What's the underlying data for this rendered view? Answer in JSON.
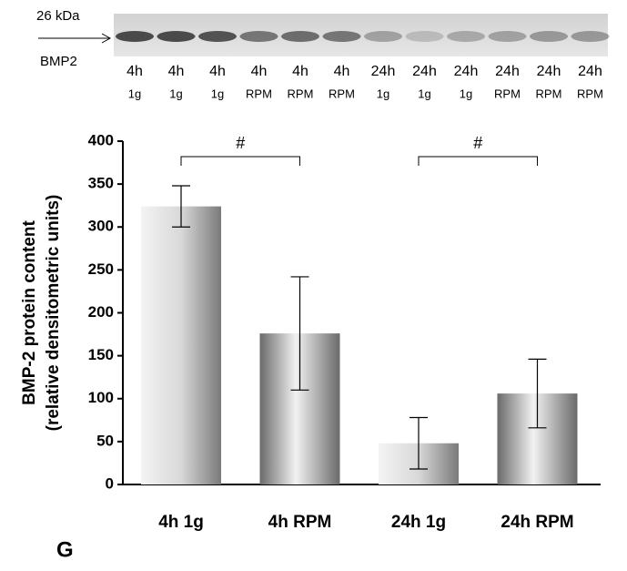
{
  "blot": {
    "marker": "26 kDa",
    "protein": "BMP2",
    "lanes": [
      {
        "time": "4h",
        "condition": "1g"
      },
      {
        "time": "4h",
        "condition": "1g"
      },
      {
        "time": "4h",
        "condition": "1g"
      },
      {
        "time": "4h",
        "condition": "RPM"
      },
      {
        "time": "4h",
        "condition": "RPM"
      },
      {
        "time": "4h",
        "condition": "RPM"
      },
      {
        "time": "24h",
        "condition": "1g"
      },
      {
        "time": "24h",
        "condition": "1g"
      },
      {
        "time": "24h",
        "condition": "1g"
      },
      {
        "time": "24h",
        "condition": "RPM"
      },
      {
        "time": "24h",
        "condition": "RPM"
      },
      {
        "time": "24h",
        "condition": "RPM"
      }
    ]
  },
  "chart_data": {
    "type": "bar",
    "ylabel": [
      "BMP-2 protein content",
      "(relative densitometric units)"
    ],
    "categories": [
      "4h 1g",
      "4h RPM",
      "24h 1g",
      "24h RPM"
    ],
    "values": [
      324,
      176,
      48,
      106
    ],
    "errors": [
      24,
      66,
      30,
      40
    ],
    "ylim": [
      0,
      400
    ],
    "yticks": [
      0,
      50,
      100,
      150,
      200,
      250,
      300,
      350,
      400
    ],
    "annotations": [
      {
        "text": "#",
        "between": [
          "4h 1g",
          "4h RPM"
        ]
      },
      {
        "text": "#",
        "between": [
          "24h 1g",
          "24h RPM"
        ]
      }
    ]
  },
  "panel_label": "G"
}
